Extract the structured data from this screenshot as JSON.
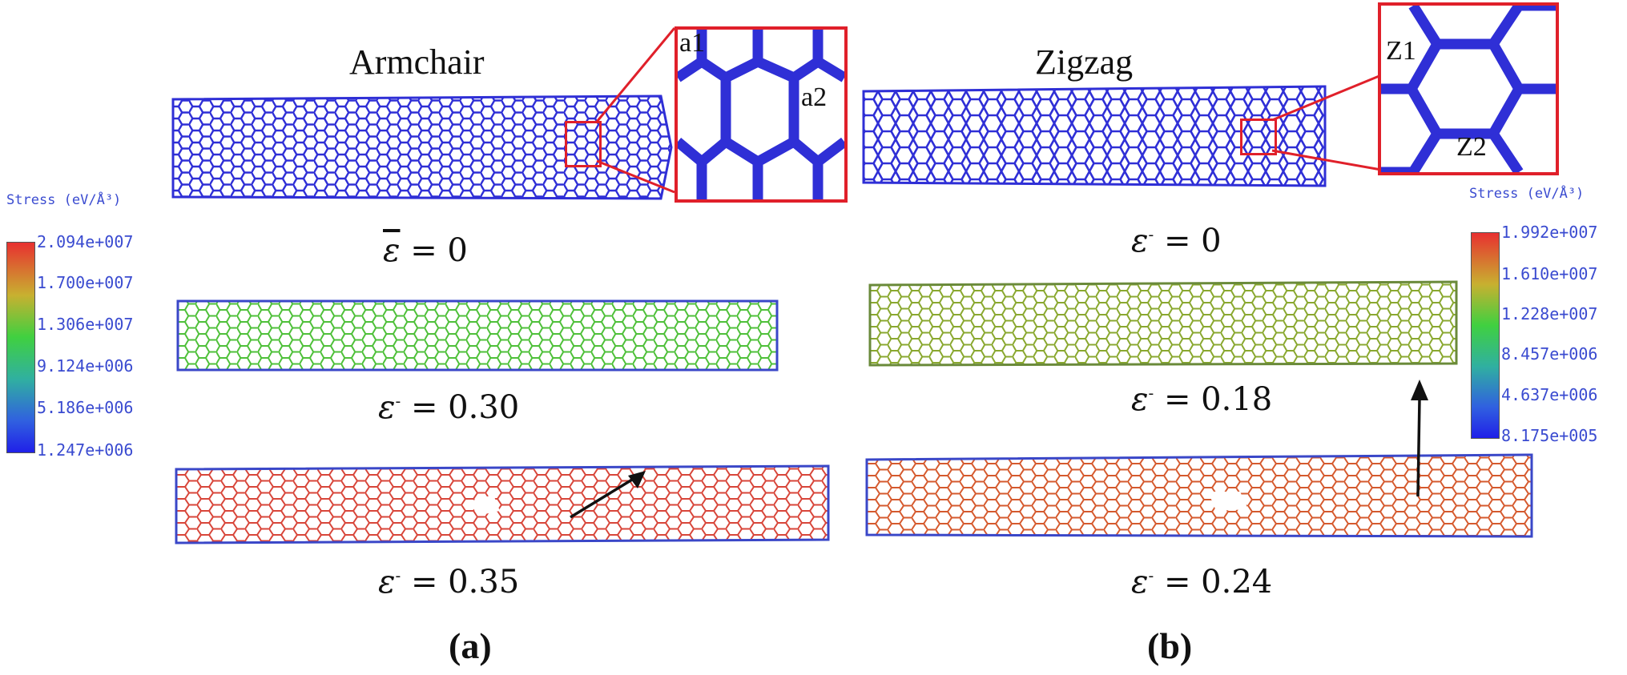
{
  "figure": {
    "panel_a": {
      "title": "Armchair",
      "label": "(a)",
      "inset_labels": [
        "a1",
        "a2"
      ],
      "strain_symbol": "ε",
      "strains": [
        "= 0",
        "= 0.30",
        "= 0.35"
      ],
      "colorbar": {
        "title": "Stress (eV/Å³)",
        "ticks": [
          "2.094e+007",
          "1.700e+007",
          "1.306e+007",
          "9.124e+006",
          "5.186e+006",
          "1.247e+006"
        ]
      }
    },
    "panel_b": {
      "title": "Zigzag",
      "label": "(b)",
      "inset_labels": [
        "Z1",
        "Z2"
      ],
      "strain_symbol": "ε",
      "strains": [
        "= 0",
        "= 0.18",
        "= 0.24"
      ],
      "colorbar": {
        "title": "Stress (eV/Å³)",
        "ticks": [
          "1.992e+007",
          "1.610e+007",
          "1.228e+007",
          "8.457e+006",
          "4.637e+006",
          "8.175e+005"
        ]
      }
    },
    "colors": {
      "unstrained": "#2f2fd6",
      "low_strain_a": "#55c038",
      "low_strain_b": "#8aa830",
      "high_strain": "#d8463a",
      "inset_frame": "#e0202a"
    }
  }
}
